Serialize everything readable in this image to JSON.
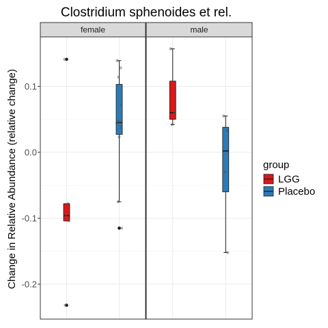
{
  "chart_data": {
    "type": "box",
    "title": "Clostridium sphenoides et rel.",
    "ylabel": "Change in Relative Abundance (relative change)",
    "xlabel": "",
    "ylim": [
      -0.253,
      0.175
    ],
    "yticks": [
      -0.2,
      -0.1,
      0.0,
      0.1
    ],
    "ytick_labels": [
      "-0.2",
      "-0.1",
      "0.0",
      "0.1"
    ],
    "grid": true,
    "facets": [
      "female",
      "male"
    ],
    "groups": [
      "LGG",
      "Placebo"
    ],
    "legend": {
      "title": "group",
      "position": "right",
      "items": [
        {
          "label": "LGG",
          "color": "#d7191c"
        },
        {
          "label": "Placebo",
          "color": "#2c7bb6"
        }
      ]
    },
    "colors": {
      "LGG": "#d7191c",
      "Placebo": "#2c7bb6"
    },
    "boxes": [
      {
        "facet": "female",
        "group": "LGG",
        "whisker_low": -0.104,
        "q1": -0.104,
        "median": -0.096,
        "q3": -0.078,
        "whisker_high": -0.078,
        "outliers": [
          0.141,
          -0.232
        ],
        "points": [
          0.141,
          -0.078,
          -0.096,
          -0.104,
          -0.232
        ]
      },
      {
        "facet": "female",
        "group": "Placebo",
        "whisker_low": -0.075,
        "q1": 0.027,
        "median": 0.045,
        "q3": 0.103,
        "whisker_high": 0.139,
        "outliers": [
          -0.115
        ],
        "points": [
          0.139,
          0.128,
          0.114,
          0.072,
          0.048,
          0.046,
          0.044,
          0.038,
          0.023,
          -0.075,
          -0.115
        ]
      },
      {
        "facet": "male",
        "group": "LGG",
        "whisker_low": 0.042,
        "q1": 0.05,
        "median": 0.06,
        "q3": 0.108,
        "whisker_high": 0.157,
        "outliers": [],
        "points": [
          0.157,
          0.06,
          0.042
        ]
      },
      {
        "facet": "male",
        "group": "Placebo",
        "whisker_low": -0.152,
        "q1": -0.06,
        "median": 0.002,
        "q3": 0.038,
        "whisker_high": 0.055,
        "outliers": [],
        "points": [
          0.055,
          0.033,
          -0.03,
          -0.152
        ]
      }
    ]
  }
}
